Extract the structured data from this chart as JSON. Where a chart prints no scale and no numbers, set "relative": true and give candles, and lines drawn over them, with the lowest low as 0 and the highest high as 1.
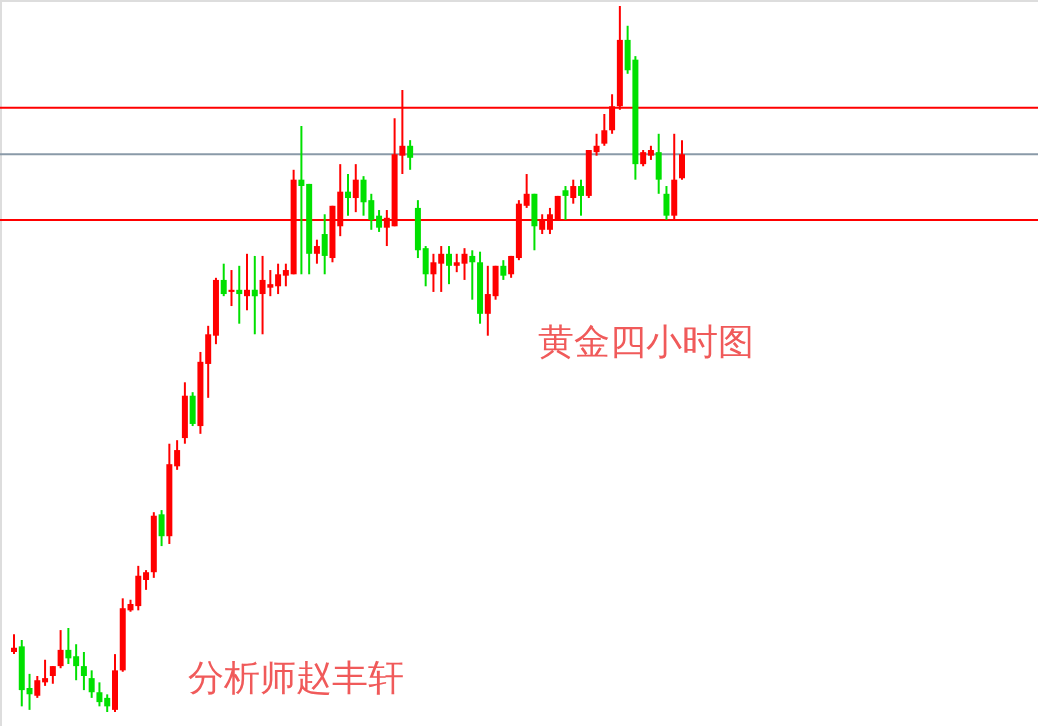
{
  "chart_data": {
    "type": "candlestick",
    "relative": true,
    "categories": [
      null,
      null,
      null,
      null,
      null,
      null,
      null,
      null,
      null,
      null,
      null,
      null,
      null,
      null,
      null,
      null,
      null,
      null,
      null,
      null,
      null,
      null,
      null,
      null,
      null,
      null,
      null,
      null,
      null,
      null,
      null,
      null,
      null,
      null,
      null,
      null,
      null,
      null,
      null,
      null,
      null,
      null,
      null,
      null,
      null,
      null,
      null,
      null,
      null,
      null,
      null,
      null,
      null,
      null,
      null,
      null,
      null,
      null,
      null,
      null,
      null,
      null,
      null,
      null,
      null,
      null,
      null,
      null,
      null,
      null,
      null,
      null,
      null,
      null,
      null,
      null,
      null,
      null,
      null,
      null,
      null,
      null,
      null,
      null,
      null,
      null,
      null
    ],
    "ohlc": [
      [
        0.085,
        0.11,
        0.082,
        0.091
      ],
      [
        0.093,
        0.102,
        0.008,
        0.031
      ],
      [
        0.034,
        0.054,
        0.003,
        0.025
      ],
      [
        0.023,
        0.051,
        0.02,
        0.045
      ],
      [
        0.042,
        0.074,
        0.037,
        0.048
      ],
      [
        0.051,
        0.065,
        0.04,
        0.065
      ],
      [
        0.065,
        0.116,
        0.062,
        0.088
      ],
      [
        0.088,
        0.119,
        0.068,
        0.076
      ],
      [
        0.079,
        0.096,
        0.045,
        0.065
      ],
      [
        0.065,
        0.085,
        0.031,
        0.051
      ],
      [
        0.048,
        0.059,
        0.02,
        0.028
      ],
      [
        0.028,
        0.042,
        0.008,
        0.014
      ],
      [
        0.02,
        0.025,
        0.0,
        0.008
      ],
      [
        0.003,
        0.082,
        0.0,
        0.059
      ],
      [
        0.059,
        0.161,
        0.057,
        0.147
      ],
      [
        0.144,
        0.159,
        0.142,
        0.153
      ],
      [
        0.15,
        0.207,
        0.144,
        0.193
      ],
      [
        0.187,
        0.201,
        0.173,
        0.198
      ],
      [
        0.198,
        0.283,
        0.19,
        0.278
      ],
      [
        0.28,
        0.286,
        0.235,
        0.249
      ],
      [
        0.249,
        0.38,
        0.238,
        0.351
      ],
      [
        0.348,
        0.385,
        0.343,
        0.371
      ],
      [
        0.388,
        0.467,
        0.38,
        0.448
      ],
      [
        0.448,
        0.453,
        0.405,
        0.408
      ],
      [
        0.405,
        0.51,
        0.394,
        0.496
      ],
      [
        0.493,
        0.547,
        0.445,
        0.535
      ],
      [
        0.533,
        0.615,
        0.521,
        0.612
      ],
      [
        0.612,
        0.635,
        0.589,
        0.592
      ],
      [
        0.595,
        0.626,
        0.575,
        0.598
      ],
      [
        0.598,
        0.632,
        0.55,
        0.592
      ],
      [
        0.589,
        0.649,
        0.569,
        0.598
      ],
      [
        0.598,
        0.646,
        0.535,
        0.589
      ],
      [
        0.592,
        0.646,
        0.535,
        0.612
      ],
      [
        0.601,
        0.626,
        0.589,
        0.606
      ],
      [
        0.603,
        0.635,
        0.592,
        0.62
      ],
      [
        0.618,
        0.635,
        0.603,
        0.626
      ],
      [
        0.62,
        0.768,
        0.62,
        0.754
      ],
      [
        0.754,
        0.83,
        0.62,
        0.745
      ],
      [
        0.748,
        0.748,
        0.62,
        0.649
      ],
      [
        0.649,
        0.669,
        0.635,
        0.66
      ],
      [
        0.677,
        0.705,
        0.62,
        0.646
      ],
      [
        0.643,
        0.717,
        0.637,
        0.717
      ],
      [
        0.688,
        0.776,
        0.674,
        0.737
      ],
      [
        0.737,
        0.762,
        0.703,
        0.728
      ],
      [
        0.728,
        0.776,
        0.708,
        0.754
      ],
      [
        0.754,
        0.759,
        0.703,
        0.722
      ],
      [
        0.725,
        0.734,
        0.683,
        0.697
      ],
      [
        0.703,
        0.711,
        0.68,
        0.686
      ],
      [
        0.686,
        0.711,
        0.66,
        0.7
      ],
      [
        0.688,
        0.841,
        0.688,
        0.79
      ],
      [
        0.788,
        0.881,
        0.762,
        0.802
      ],
      [
        0.802,
        0.81,
        0.768,
        0.785
      ],
      [
        0.714,
        0.725,
        0.643,
        0.654
      ],
      [
        0.657,
        0.66,
        0.603,
        0.62
      ],
      [
        0.62,
        0.649,
        0.595,
        0.637
      ],
      [
        0.635,
        0.66,
        0.595,
        0.649
      ],
      [
        0.649,
        0.66,
        0.606,
        0.632
      ],
      [
        0.632,
        0.649,
        0.623,
        0.637
      ],
      [
        0.635,
        0.657,
        0.612,
        0.649
      ],
      [
        0.646,
        0.654,
        0.584,
        0.637
      ],
      [
        0.637,
        0.652,
        0.55,
        0.564
      ],
      [
        0.564,
        0.632,
        0.533,
        0.592
      ],
      [
        0.589,
        0.632,
        0.584,
        0.632
      ],
      [
        0.632,
        0.64,
        0.612,
        0.618
      ],
      [
        0.62,
        0.646,
        0.615,
        0.646
      ],
      [
        0.643,
        0.725,
        0.64,
        0.72
      ],
      [
        0.717,
        0.762,
        0.714,
        0.734
      ],
      [
        0.734,
        0.734,
        0.654,
        0.688
      ],
      [
        0.683,
        0.705,
        0.677,
        0.697
      ],
      [
        0.683,
        0.714,
        0.677,
        0.705
      ],
      [
        0.697,
        0.731,
        0.697,
        0.731
      ],
      [
        0.739,
        0.745,
        0.697,
        0.731
      ],
      [
        0.728,
        0.754,
        0.72,
        0.745
      ],
      [
        0.745,
        0.754,
        0.703,
        0.731
      ],
      [
        0.731,
        0.796,
        0.728,
        0.796
      ],
      [
        0.793,
        0.819,
        0.788,
        0.802
      ],
      [
        0.805,
        0.847,
        0.802,
        0.824
      ],
      [
        0.824,
        0.875,
        0.819,
        0.858
      ],
      [
        0.858,
        1.0,
        0.853,
        0.952
      ],
      [
        0.952,
        0.972,
        0.904,
        0.909
      ],
      [
        0.924,
        0.929,
        0.754,
        0.776
      ],
      [
        0.776,
        0.796,
        0.773,
        0.793
      ],
      [
        0.788,
        0.802,
        0.782,
        0.796
      ],
      [
        0.793,
        0.819,
        0.734,
        0.754
      ],
      [
        0.734,
        0.745,
        0.697,
        0.703
      ],
      [
        0.703,
        0.819,
        0.697,
        0.754
      ],
      [
        0.756,
        0.81,
        0.754,
        0.79
      ]
    ],
    "colors": [
      "#ff0000",
      "#00e000",
      "#00e000",
      "#ff0000",
      "#ff0000",
      "#ff0000",
      "#ff0000",
      "#00e000",
      "#00e000",
      "#00e000",
      "#00e000",
      "#00e000",
      "#00e000",
      "#ff0000",
      "#ff0000",
      "#ff0000",
      "#ff0000",
      "#ff0000",
      "#ff0000",
      "#00e000",
      "#ff0000",
      "#ff0000",
      "#ff0000",
      "#00e000",
      "#ff0000",
      "#ff0000",
      "#ff0000",
      "#00e000",
      "#ff0000",
      "#00e000",
      "#ff0000",
      "#00e000",
      "#ff0000",
      "#ff0000",
      "#ff0000",
      "#ff0000",
      "#ff0000",
      "#00e000",
      "#00e000",
      "#ff0000",
      "#00e000",
      "#ff0000",
      "#ff0000",
      "#00e000",
      "#ff0000",
      "#00e000",
      "#00e000",
      "#00e000",
      "#ff0000",
      "#ff0000",
      "#ff0000",
      "#00e000",
      "#00e000",
      "#00e000",
      "#ff0000",
      "#ff0000",
      "#00e000",
      "#ff0000",
      "#ff0000",
      "#00e000",
      "#00e000",
      "#ff0000",
      "#ff0000",
      "#00e000",
      "#ff0000",
      "#ff0000",
      "#ff0000",
      "#00e000",
      "#ff0000",
      "#ff0000",
      "#ff0000",
      "#00e000",
      "#ff0000",
      "#00e000",
      "#ff0000",
      "#ff0000",
      "#ff0000",
      "#ff0000",
      "#ff0000",
      "#00e000",
      "#00e000",
      "#ff0000",
      "#ff0000",
      "#00e000",
      "#00e000",
      "#ff0000",
      "#ff0000"
    ],
    "ref_lines": [
      {
        "axis": "y",
        "value": 0.856,
        "color": "#ff0000"
      },
      {
        "axis": "y",
        "value": 0.79,
        "color": "#8a9aa8"
      },
      {
        "axis": "y",
        "value": 0.697,
        "color": "#ff0000"
      }
    ],
    "annotations": [
      "黄金四小时图",
      "分析师赵丰轩"
    ]
  }
}
